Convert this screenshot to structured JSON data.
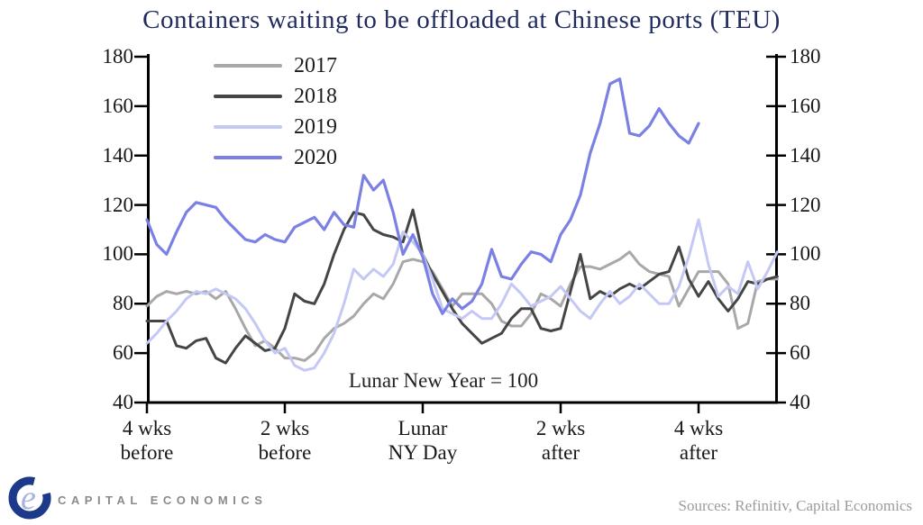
{
  "footer": {
    "logo_text": "CAPITAL ECONOMICS",
    "sources": "Sources: Refinitiv, Capital Economics"
  },
  "colors": {
    "title": "#1f2a5e",
    "axis": "#000000",
    "logo_c": "#1d3a8a",
    "logo_e": "#a9b3e2"
  },
  "chart_data": {
    "type": "line",
    "title": "Containers waiting to be offloaded at Chinese ports (TEU)",
    "annotation": "Lunar New Year = 100",
    "legend_position": "top-left",
    "grid": false,
    "y_axis": {
      "ticks": [
        180,
        160,
        140,
        120,
        100,
        80,
        60,
        40
      ],
      "range": [
        40,
        180
      ],
      "shown_on": "both sides"
    },
    "x_axis": {
      "unit": "days relative to Lunar New Year",
      "ticks": [
        {
          "day": -28,
          "label": [
            "4 wks",
            "before"
          ]
        },
        {
          "day": -14,
          "label": [
            "2 wks",
            "before"
          ]
        },
        {
          "day": 0,
          "label": [
            "Lunar",
            "NY Day"
          ]
        },
        {
          "day": 14,
          "label": [
            "2 wks",
            "after"
          ]
        },
        {
          "day": 28,
          "label": [
            "4 wks",
            "after"
          ]
        }
      ],
      "domain": [
        -28,
        36
      ]
    },
    "series": [
      {
        "name": "2017",
        "color": "#a8a8a8",
        "width": 3,
        "start_day": -28,
        "values": [
          79,
          83,
          85,
          84,
          85,
          84,
          85,
          82,
          85,
          78,
          70,
          63,
          65,
          62,
          58,
          58,
          57,
          60,
          66,
          70,
          72,
          75,
          80,
          84,
          82,
          88,
          97,
          98,
          97,
          93,
          86,
          79,
          84,
          84,
          84,
          80,
          73,
          71,
          71,
          76,
          84,
          82,
          79,
          88,
          95,
          95,
          94,
          96,
          98,
          101,
          96,
          93,
          92,
          91,
          79,
          86,
          93,
          93,
          93,
          88,
          70,
          72,
          89,
          90,
          90
        ]
      },
      {
        "name": "2018",
        "color": "#454545",
        "width": 3,
        "start_day": -28,
        "values": [
          73,
          73,
          73,
          63,
          62,
          65,
          66,
          58,
          56,
          62,
          67,
          64,
          61,
          62,
          70,
          84,
          81,
          80,
          88,
          100,
          110,
          117,
          116,
          110,
          108,
          107,
          105,
          118,
          100,
          92,
          85,
          78,
          72,
          68,
          64,
          66,
          68,
          74,
          78,
          78,
          70,
          69,
          70,
          85,
          100,
          82,
          85,
          83,
          86,
          88,
          86,
          89,
          92,
          93,
          103,
          90,
          83,
          89,
          82,
          77,
          82,
          89,
          88,
          90,
          91
        ]
      },
      {
        "name": "2019",
        "color": "#c4c8f4",
        "width": 3,
        "start_day": -28,
        "values": [
          64,
          68,
          73,
          77,
          82,
          85,
          84,
          86,
          84,
          82,
          78,
          72,
          65,
          60,
          62,
          55,
          53,
          54,
          60,
          68,
          80,
          94,
          90,
          94,
          91,
          96,
          109,
          105,
          100,
          90,
          78,
          76,
          74,
          77,
          74,
          74,
          80,
          88,
          84,
          79,
          81,
          83,
          87,
          82,
          77,
          74,
          80,
          85,
          80,
          83,
          88,
          84,
          80,
          80,
          87,
          99,
          114,
          96,
          83,
          87,
          84,
          97,
          86,
          93,
          101
        ]
      },
      {
        "name": "2020",
        "color": "#7b80e4",
        "width": 3.2,
        "start_day": -28,
        "values": [
          114,
          104,
          100,
          109,
          117,
          121,
          120,
          119,
          114,
          110,
          106,
          105,
          108,
          106,
          105,
          111,
          113,
          115,
          110,
          117,
          112,
          111,
          132,
          126,
          130,
          117,
          100,
          108,
          99,
          84,
          76,
          82,
          78,
          81,
          88,
          102,
          91,
          90,
          96,
          101,
          100,
          97,
          108,
          114,
          124,
          141,
          153,
          169,
          171,
          149,
          148,
          152,
          159,
          153,
          148,
          145,
          153
        ]
      }
    ]
  }
}
